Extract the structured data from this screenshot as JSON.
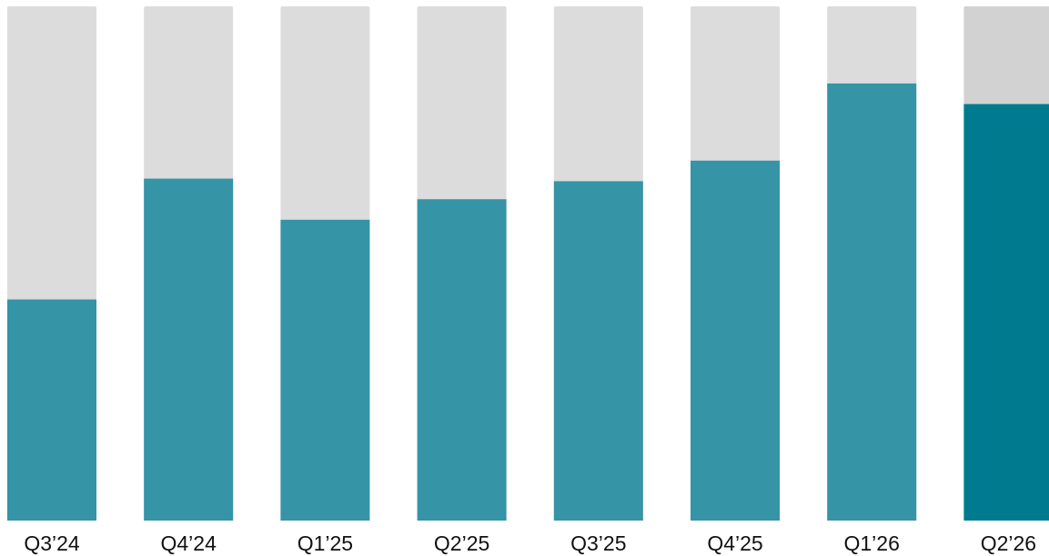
{
  "chart_data": {
    "type": "bar",
    "categories": [
      "Q3’24",
      "Q4’24",
      "Q1’25",
      "Q2’25",
      "Q3’25",
      "Q4’25",
      "Q1’26",
      "Q2’26"
    ],
    "values": [
      43,
      66.5,
      58.5,
      62.5,
      66,
      70,
      85,
      81
    ],
    "ylim": [
      0,
      100
    ],
    "grid": false,
    "legend": "none",
    "colors": {
      "bar": "#3594a6",
      "bar_highlight": "#007a8f",
      "track": "#dcdcdc",
      "track_highlight": "#d2d2d2"
    },
    "highlight_index": 7
  }
}
